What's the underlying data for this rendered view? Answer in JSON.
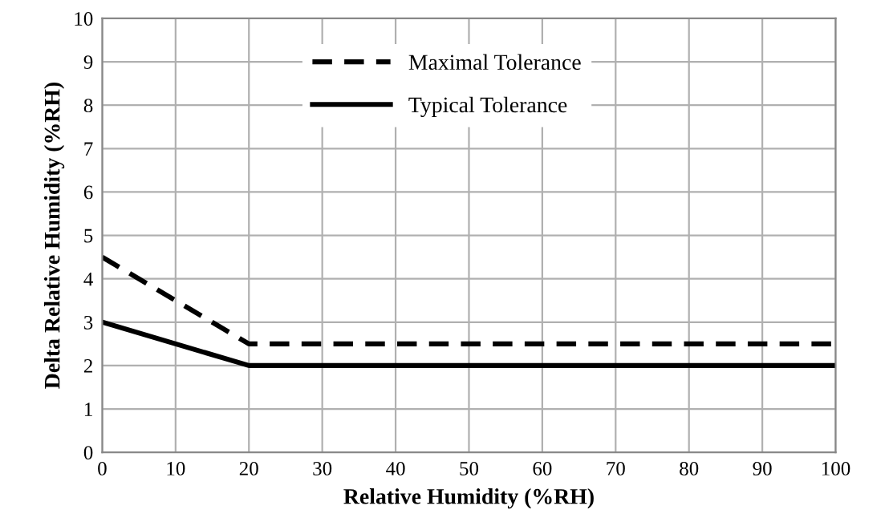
{
  "chart_data": {
    "type": "line",
    "xlabel": "Relative Humidity (%RH)",
    "ylabel": "Delta Relative Humidity (%RH)",
    "series": [
      {
        "name": "Maximal Tolerance",
        "color": "#000000",
        "line_style": "dashed",
        "x": [
          0,
          20,
          100
        ],
        "values": [
          4.5,
          2.5,
          2.5
        ]
      },
      {
        "name": "Typical Tolerance",
        "color": "#000000",
        "line_style": "solid",
        "x": [
          0,
          20,
          100
        ],
        "values": [
          3,
          2,
          2
        ]
      }
    ],
    "xlim": [
      0,
      100
    ],
    "xticks": [
      0,
      10,
      20,
      30,
      40,
      50,
      60,
      70,
      80,
      90,
      100
    ],
    "ylim": [
      0,
      10
    ],
    "yticks": [
      0,
      1,
      2,
      3,
      4,
      5,
      6,
      7,
      8,
      9,
      10
    ],
    "grid": true,
    "legend": "top",
    "marker": "none"
  }
}
